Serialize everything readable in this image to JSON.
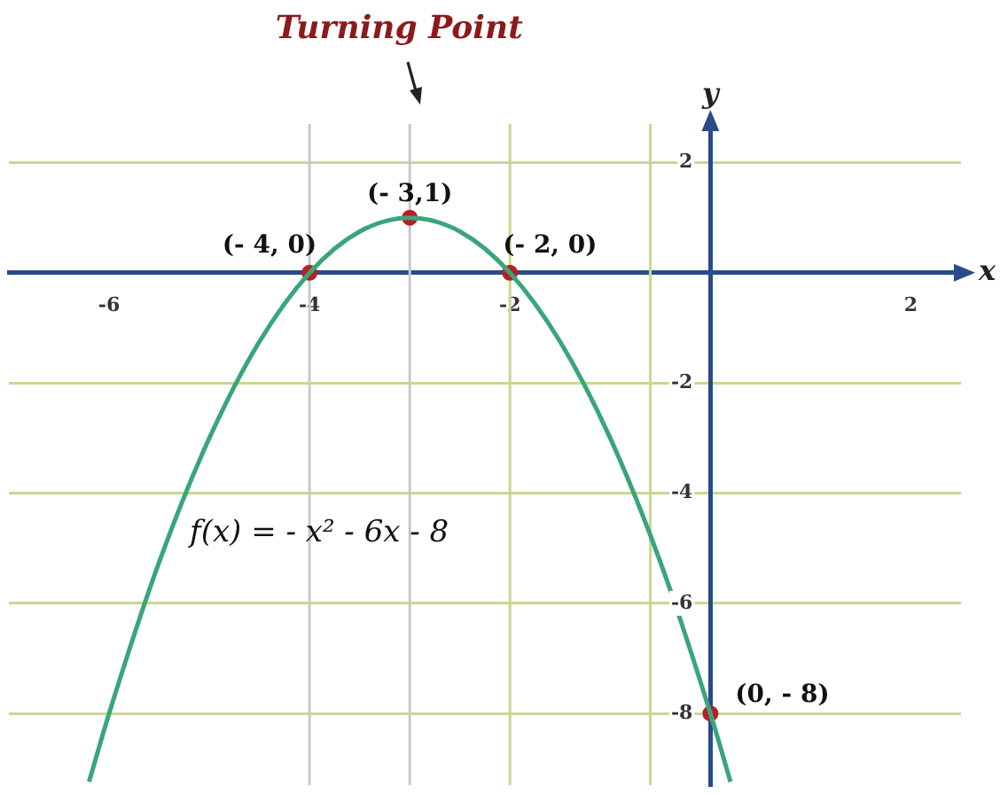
{
  "chart_data": {
    "type": "line",
    "xlabel": "x",
    "ylabel": "y",
    "xlim": [
      -7,
      2.5
    ],
    "ylim": [
      -9.3,
      2.7
    ],
    "xticks": [
      -6,
      -4,
      -2,
      2
    ],
    "yticks": [
      -8,
      -6,
      -4,
      -2,
      2
    ],
    "grid": "y",
    "series": [
      {
        "color": "#3aa57a",
        "marker": "none",
        "x": [
          -6.2,
          -6,
          -5.5,
          -5,
          -4.5,
          -4,
          -3.5,
          -3,
          -2.5,
          -2,
          -1.5,
          -1,
          -0.5,
          0,
          0.2
        ],
        "values": [
          -9.24,
          -8,
          -5.25,
          -3,
          -1.25,
          0,
          0.75,
          1,
          0.75,
          0,
          -1.25,
          -3,
          -5.25,
          -8,
          -9.24
        ]
      },
      {
        "type": "scatter",
        "color": "#b22222",
        "marker": "circle",
        "x": [
          -4,
          -3,
          -2,
          0
        ],
        "values": [
          0,
          1,
          0,
          -8
        ]
      }
    ],
    "ref_lines": [
      {
        "axis": "x",
        "value": -4,
        "color": "#c8c8c8"
      },
      {
        "axis": "x",
        "value": -3,
        "color": "#c8c8c8"
      },
      {
        "axis": "x",
        "value": -2,
        "color": "#c8d890"
      },
      {
        "axis": "x",
        "value": -0.6,
        "color": "#c8d890"
      }
    ],
    "annotations": [
      "Turning Point",
      {
        "text": "(- 4, 0)",
        "x": -4,
        "y": 0
      },
      {
        "text": "(- 3,1)",
        "x": -3,
        "y": 1
      },
      {
        "text": "(- 2, 0)",
        "x": -2,
        "y": 0
      },
      {
        "text": "(0, - 8)",
        "x": 0,
        "y": -8
      },
      "f(x) = - x² - 6x - 8"
    ]
  }
}
